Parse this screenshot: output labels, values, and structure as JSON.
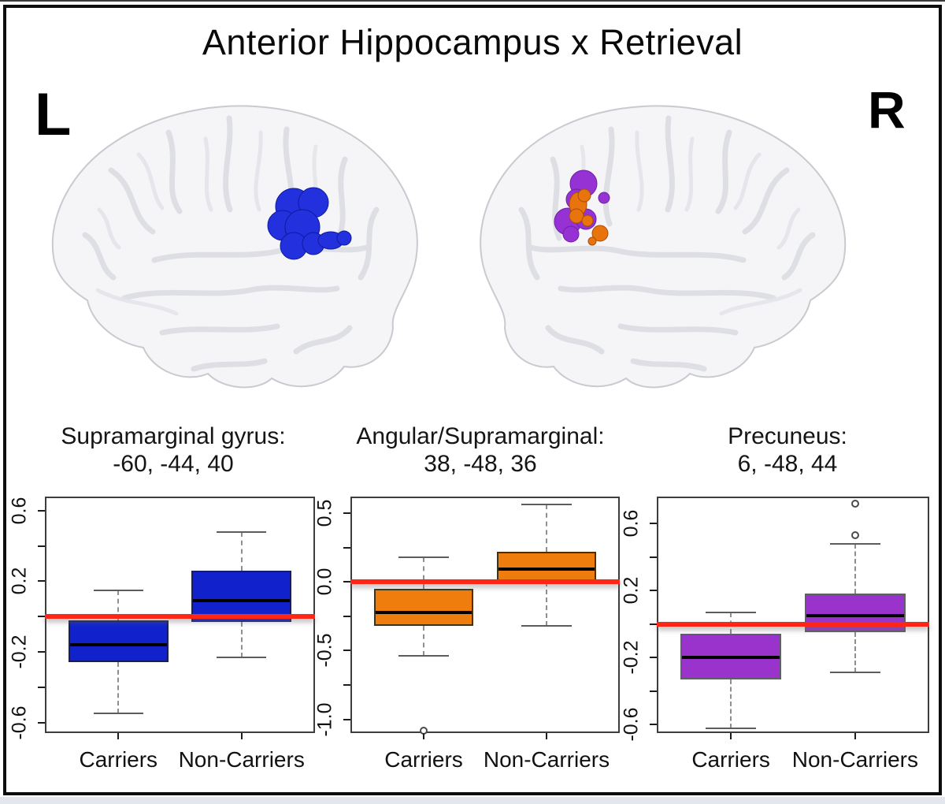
{
  "figure_title": "Anterior Hippocampus x Retrieval",
  "hemisphere_labels": {
    "left": "L",
    "right": "R"
  },
  "reference_line_color": "#ff2616",
  "brains": {
    "left": {
      "highlight_color": "#2231dd",
      "highlight_region": "Supramarginal gyrus"
    },
    "right": {
      "highlight_colors": [
        "#9632d4",
        "#e9740e"
      ],
      "highlight_regions": [
        "Precuneus",
        "Angular/Supramarginal"
      ]
    }
  },
  "chart_data": [
    {
      "type": "boxplot",
      "title_line1": "Supramarginal gyrus:",
      "title_line2": "-60, -44, 40",
      "fill": "#1122cc",
      "box_border": "#141d66",
      "categories": [
        "Carriers",
        "Non-Carriers"
      ],
      "ylim": [
        -0.66,
        0.68
      ],
      "reference_line": 0,
      "yticks": [
        {
          "v": 0.6,
          "label": "0.6"
        },
        {
          "v": 0.4,
          "label": ""
        },
        {
          "v": 0.2,
          "label": "0.2"
        },
        {
          "v": 0.0,
          "label": ""
        },
        {
          "v": -0.2,
          "label": "-0.2"
        },
        {
          "v": -0.4,
          "label": ""
        },
        {
          "v": -0.6,
          "label": "-0.6"
        }
      ],
      "series": [
        {
          "name": "Carriers",
          "whisker_low": -0.55,
          "q1": -0.26,
          "median": -0.16,
          "q3": -0.02,
          "whisker_high": 0.15,
          "outliers": []
        },
        {
          "name": "Non-Carriers",
          "whisker_low": -0.23,
          "q1": -0.03,
          "median": 0.09,
          "q3": 0.26,
          "whisker_high": 0.48,
          "outliers": []
        }
      ]
    },
    {
      "type": "boxplot",
      "title_line1": "Angular/Supramarginal:",
      "title_line2": "38, -48, 36",
      "fill": "#ee7d0e",
      "box_border": "#45300a",
      "categories": [
        "Carriers",
        "Non-Carriers"
      ],
      "ylim": [
        -1.1,
        0.62
      ],
      "reference_line": 0,
      "yticks": [
        {
          "v": 0.5,
          "label": "0.5"
        },
        {
          "v": 0.25,
          "label": ""
        },
        {
          "v": 0.0,
          "label": "0.0"
        },
        {
          "v": -0.25,
          "label": ""
        },
        {
          "v": -0.5,
          "label": "-0.5"
        },
        {
          "v": -0.75,
          "label": ""
        },
        {
          "v": -1.0,
          "label": "-1.0"
        }
      ],
      "series": [
        {
          "name": "Carriers",
          "whisker_low": -0.54,
          "q1": -0.32,
          "median": -0.22,
          "q3": -0.05,
          "whisker_high": 0.18,
          "outliers": [
            -1.08
          ]
        },
        {
          "name": "Non-Carriers",
          "whisker_low": -0.32,
          "q1": 0.0,
          "median": 0.09,
          "q3": 0.22,
          "whisker_high": 0.56,
          "outliers": []
        }
      ]
    },
    {
      "type": "boxplot",
      "title_line1": "Precuneus:",
      "title_line2": "6, -48, 44",
      "fill": "#9a33cc",
      "box_border": "#5f5f66",
      "categories": [
        "Carriers",
        "Non-Carriers"
      ],
      "ylim": [
        -0.65,
        0.76
      ],
      "reference_line": 0,
      "yticks": [
        {
          "v": 0.6,
          "label": "0.6"
        },
        {
          "v": 0.4,
          "label": ""
        },
        {
          "v": 0.2,
          "label": "0.2"
        },
        {
          "v": 0.0,
          "label": ""
        },
        {
          "v": -0.2,
          "label": "-0.2"
        },
        {
          "v": -0.4,
          "label": ""
        },
        {
          "v": -0.6,
          "label": "-0.6"
        }
      ],
      "series": [
        {
          "name": "Carriers",
          "whisker_low": -0.62,
          "q1": -0.33,
          "median": -0.2,
          "q3": -0.06,
          "whisker_high": 0.07,
          "outliers": []
        },
        {
          "name": "Non-Carriers",
          "whisker_low": -0.29,
          "q1": -0.05,
          "median": 0.05,
          "q3": 0.18,
          "whisker_high": 0.48,
          "outliers": [
            0.53,
            0.72
          ]
        }
      ]
    }
  ]
}
